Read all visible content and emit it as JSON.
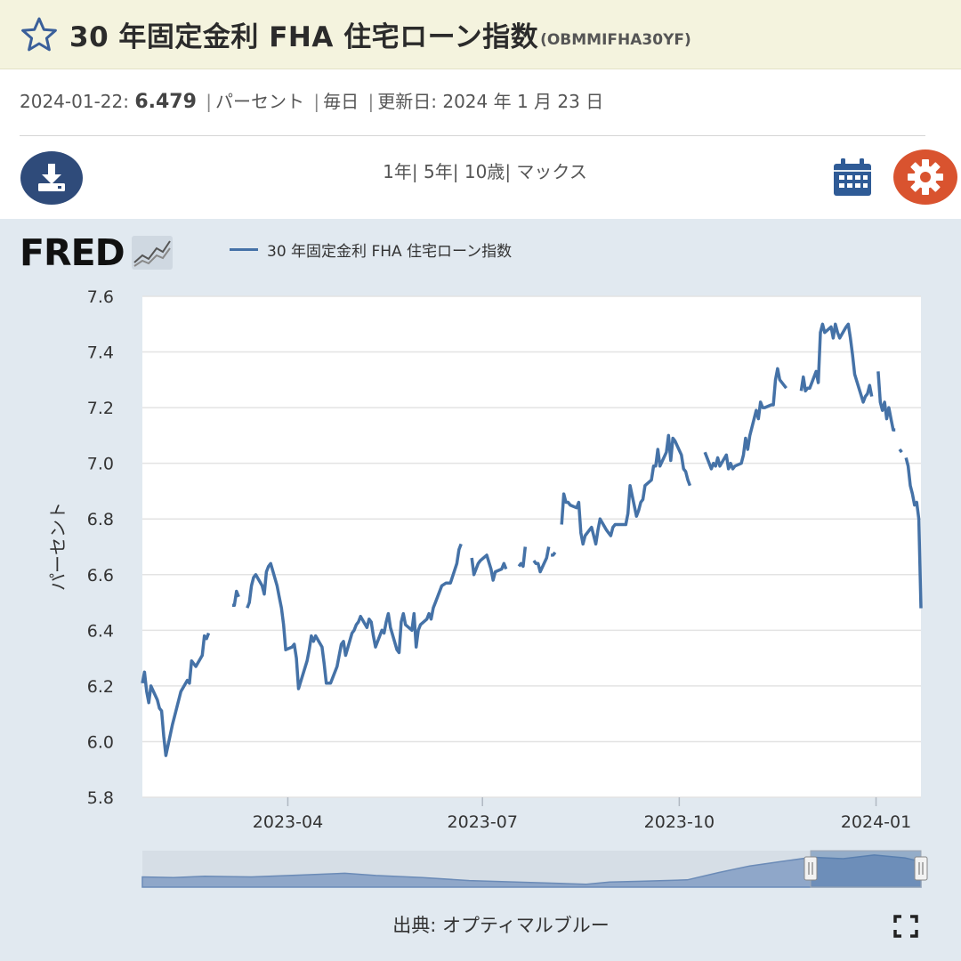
{
  "header": {
    "title": "30 年固定金利 FHA 住宅ローン指数",
    "code": "(OBMMIFHA30YF)",
    "star_icon": "star-outline-icon"
  },
  "meta": {
    "date": "2024-01-22:",
    "value": "6.479",
    "units": "パーセント",
    "frequency": "毎日",
    "updated_label": "更新日:",
    "updated_value": "2024 年 1 月 23 日"
  },
  "toolbar": {
    "ranges": [
      "1年",
      "5年",
      "10歳",
      "マックス"
    ],
    "download_icon": "download-icon",
    "calendar_icon": "calendar-icon",
    "settings_icon": "gear-icon"
  },
  "logo": {
    "text": "FRED"
  },
  "source": "出典: オプティマルブルー",
  "colors": {
    "series": "#4572a7",
    "gear": "#d9532f",
    "download": "#2f4b7a"
  },
  "chart_data": {
    "type": "line",
    "xlabel": "",
    "ylabel": "パーセント",
    "ylim": [
      5.8,
      7.6
    ],
    "yticks": [
      "5.8",
      "6.0",
      "6.2",
      "6.4",
      "6.6",
      "6.8",
      "7.0",
      "7.2",
      "7.4",
      "7.6"
    ],
    "xticks": [
      {
        "label": "2023-04",
        "date": "2023-04-01"
      },
      {
        "label": "2023-07",
        "date": "2023-07-01"
      },
      {
        "label": "2023-10",
        "date": "2023-10-01"
      },
      {
        "label": "2024-01",
        "date": "2024-01-01"
      }
    ],
    "xlim": [
      "2023-01-23",
      "2024-01-22"
    ],
    "grid": true,
    "legend": "top",
    "series": [
      {
        "name": "30 年固定金利 FHA 住宅ローン指数",
        "points": [
          [
            "2023-01-23",
            6.21
          ],
          [
            "2023-01-24",
            6.25
          ],
          [
            "2023-01-25",
            6.18
          ],
          [
            "2023-01-26",
            6.14
          ],
          [
            "2023-01-27",
            6.2
          ],
          [
            "2023-01-30",
            6.15
          ],
          [
            "2023-01-31",
            6.12
          ],
          [
            "2023-02-01",
            6.11
          ],
          [
            "2023-02-02",
            6.02
          ],
          [
            "2023-02-03",
            5.95
          ],
          [
            "2023-02-06",
            6.06
          ],
          [
            "2023-02-08",
            6.12
          ],
          [
            "2023-02-10",
            6.18
          ],
          [
            "2023-02-13",
            6.22
          ],
          [
            "2023-02-14",
            6.21
          ],
          [
            "2023-02-15",
            6.29
          ],
          [
            "2023-02-17",
            6.27
          ],
          [
            "2023-02-20",
            6.31
          ],
          [
            "2023-02-21",
            6.38
          ],
          [
            "2023-02-22",
            6.37
          ],
          [
            "2023-02-23",
            6.39
          ],
          [
            "2023-02-24",
            null
          ],
          [
            "2023-03-06",
            6.49
          ],
          [
            "2023-03-07",
            6.49
          ],
          [
            "2023-03-08",
            6.54
          ],
          [
            "2023-03-09",
            6.52
          ],
          [
            "2023-03-10",
            null
          ],
          [
            "2023-03-13",
            6.48
          ],
          [
            "2023-03-14",
            6.5
          ],
          [
            "2023-03-15",
            6.56
          ],
          [
            "2023-03-16",
            6.59
          ],
          [
            "2023-03-17",
            6.6
          ],
          [
            "2023-03-20",
            6.56
          ],
          [
            "2023-03-21",
            6.53
          ],
          [
            "2023-03-22",
            6.61
          ],
          [
            "2023-03-23",
            6.63
          ],
          [
            "2023-03-24",
            6.64
          ],
          [
            "2023-03-27",
            6.56
          ],
          [
            "2023-03-28",
            6.52
          ],
          [
            "2023-03-29",
            6.48
          ],
          [
            "2023-03-30",
            6.42
          ],
          [
            "2023-03-31",
            6.33
          ],
          [
            "2023-04-03",
            6.34
          ],
          [
            "2023-04-04",
            6.35
          ],
          [
            "2023-04-05",
            6.3
          ],
          [
            "2023-04-06",
            6.19
          ],
          [
            "2023-04-10",
            6.29
          ],
          [
            "2023-04-11",
            6.33
          ],
          [
            "2023-04-12",
            6.38
          ],
          [
            "2023-04-13",
            6.36
          ],
          [
            "2023-04-14",
            6.38
          ],
          [
            "2023-04-17",
            6.34
          ],
          [
            "2023-04-18",
            6.28
          ],
          [
            "2023-04-19",
            6.21
          ],
          [
            "2023-04-20",
            6.21
          ],
          [
            "2023-04-21",
            6.21
          ],
          [
            "2023-04-24",
            6.27
          ],
          [
            "2023-04-25",
            6.31
          ],
          [
            "2023-04-26",
            6.35
          ],
          [
            "2023-04-27",
            6.36
          ],
          [
            "2023-04-28",
            6.31
          ],
          [
            "2023-05-01",
            6.39
          ],
          [
            "2023-05-02",
            6.4
          ],
          [
            "2023-05-03",
            6.42
          ],
          [
            "2023-05-04",
            6.43
          ],
          [
            "2023-05-05",
            6.45
          ],
          [
            "2023-05-08",
            6.41
          ],
          [
            "2023-05-09",
            6.44
          ],
          [
            "2023-05-10",
            6.43
          ],
          [
            "2023-05-11",
            6.38
          ],
          [
            "2023-05-12",
            6.34
          ],
          [
            "2023-05-15",
            6.4
          ],
          [
            "2023-05-16",
            6.39
          ],
          [
            "2023-05-17",
            6.43
          ],
          [
            "2023-05-18",
            6.46
          ],
          [
            "2023-05-19",
            6.41
          ],
          [
            "2023-05-22",
            6.33
          ],
          [
            "2023-05-23",
            6.32
          ],
          [
            "2023-05-24",
            6.43
          ],
          [
            "2023-05-25",
            6.46
          ],
          [
            "2023-05-26",
            6.42
          ],
          [
            "2023-05-29",
            6.4
          ],
          [
            "2023-05-30",
            6.46
          ],
          [
            "2023-05-31",
            6.34
          ],
          [
            "2023-06-01",
            6.4
          ],
          [
            "2023-06-02",
            6.42
          ],
          [
            "2023-06-05",
            6.44
          ],
          [
            "2023-06-06",
            6.46
          ],
          [
            "2023-06-07",
            6.44
          ],
          [
            "2023-06-08",
            6.48
          ],
          [
            "2023-06-09",
            6.5
          ],
          [
            "2023-06-12",
            6.56
          ],
          [
            "2023-06-14",
            6.57
          ],
          [
            "2023-06-16",
            6.57
          ],
          [
            "2023-06-19",
            6.64
          ],
          [
            "2023-06-20",
            6.69
          ],
          [
            "2023-06-21",
            6.71
          ],
          [
            "2023-06-22",
            null
          ],
          [
            "2023-06-26",
            6.66
          ],
          [
            "2023-06-27",
            6.6
          ],
          [
            "2023-06-28",
            6.62
          ],
          [
            "2023-06-29",
            6.64
          ],
          [
            "2023-06-30",
            6.65
          ],
          [
            "2023-07-03",
            6.67
          ],
          [
            "2023-07-05",
            6.62
          ],
          [
            "2023-07-06",
            6.58
          ],
          [
            "2023-07-07",
            6.61
          ],
          [
            "2023-07-10",
            6.62
          ],
          [
            "2023-07-11",
            6.64
          ],
          [
            "2023-07-12",
            6.62
          ],
          [
            "2023-07-13",
            null
          ],
          [
            "2023-07-18",
            6.63
          ],
          [
            "2023-07-19",
            6.64
          ],
          [
            "2023-07-20",
            6.63
          ],
          [
            "2023-07-21",
            6.7
          ],
          [
            "2023-07-22",
            null
          ],
          [
            "2023-07-25",
            6.65
          ],
          [
            "2023-07-26",
            6.64
          ],
          [
            "2023-07-27",
            6.64
          ],
          [
            "2023-07-28",
            6.61
          ],
          [
            "2023-07-31",
            6.66
          ],
          [
            "2023-08-01",
            6.7
          ],
          [
            "2023-08-02",
            null
          ],
          [
            "2023-08-02",
            6.67
          ],
          [
            "2023-08-03",
            6.67
          ],
          [
            "2023-08-04",
            6.68
          ],
          [
            "2023-08-05",
            null
          ],
          [
            "2023-08-07",
            6.78
          ],
          [
            "2023-08-08",
            6.89
          ],
          [
            "2023-08-09",
            6.86
          ],
          [
            "2023-08-10",
            6.86
          ],
          [
            "2023-08-11",
            6.85
          ],
          [
            "2023-08-14",
            6.84
          ],
          [
            "2023-08-15",
            6.86
          ],
          [
            "2023-08-16",
            6.75
          ],
          [
            "2023-08-17",
            6.71
          ],
          [
            "2023-08-18",
            6.74
          ],
          [
            "2023-08-21",
            6.77
          ],
          [
            "2023-08-22",
            6.74
          ],
          [
            "2023-08-23",
            6.71
          ],
          [
            "2023-08-24",
            6.76
          ],
          [
            "2023-08-25",
            6.8
          ],
          [
            "2023-08-28",
            6.76
          ],
          [
            "2023-08-29",
            6.75
          ],
          [
            "2023-08-30",
            6.74
          ],
          [
            "2023-08-31",
            6.77
          ],
          [
            "2023-09-01",
            6.78
          ],
          [
            "2023-09-05",
            6.78
          ],
          [
            "2023-09-06",
            6.78
          ],
          [
            "2023-09-07",
            6.82
          ],
          [
            "2023-09-08",
            6.92
          ],
          [
            "2023-09-11",
            6.81
          ],
          [
            "2023-09-12",
            6.83
          ],
          [
            "2023-09-13",
            6.86
          ],
          [
            "2023-09-14",
            6.87
          ],
          [
            "2023-09-15",
            6.92
          ],
          [
            "2023-09-18",
            6.94
          ],
          [
            "2023-09-19",
            6.99
          ],
          [
            "2023-09-20",
            6.99
          ],
          [
            "2023-09-21",
            7.05
          ],
          [
            "2023-09-22",
            6.99
          ],
          [
            "2023-09-25",
            7.04
          ],
          [
            "2023-09-26",
            7.1
          ],
          [
            "2023-09-27",
            7.01
          ],
          [
            "2023-09-28",
            7.09
          ],
          [
            "2023-09-29",
            7.08
          ],
          [
            "2023-10-02",
            7.03
          ],
          [
            "2023-10-03",
            6.98
          ],
          [
            "2023-10-04",
            6.97
          ],
          [
            "2023-10-05",
            6.94
          ],
          [
            "2023-10-06",
            6.92
          ],
          [
            "2023-10-07",
            null
          ],
          [
            "2023-10-13",
            7.04
          ],
          [
            "2023-10-16",
            6.98
          ],
          [
            "2023-10-17",
            7.0
          ],
          [
            "2023-10-18",
            6.99
          ],
          [
            "2023-10-19",
            7.02
          ],
          [
            "2023-10-20",
            6.99
          ],
          [
            "2023-10-23",
            7.03
          ],
          [
            "2023-10-24",
            6.98
          ],
          [
            "2023-10-25",
            7.0
          ],
          [
            "2023-10-26",
            6.98
          ],
          [
            "2023-10-27",
            6.99
          ],
          [
            "2023-10-30",
            7.0
          ],
          [
            "2023-10-31",
            7.03
          ],
          [
            "2023-11-01",
            7.09
          ],
          [
            "2023-11-02",
            7.05
          ],
          [
            "2023-11-03",
            7.1
          ],
          [
            "2023-11-06",
            7.19
          ],
          [
            "2023-11-07",
            7.16
          ],
          [
            "2023-11-08",
            7.22
          ],
          [
            "2023-11-09",
            7.2
          ],
          [
            "2023-11-10",
            7.2
          ],
          [
            "2023-11-13",
            7.21
          ],
          [
            "2023-11-14",
            7.21
          ],
          [
            "2023-11-15",
            7.3
          ],
          [
            "2023-11-16",
            7.34
          ],
          [
            "2023-11-17",
            7.3
          ],
          [
            "2023-11-20",
            7.27
          ],
          [
            "2023-11-21",
            null
          ],
          [
            "2023-11-27",
            7.26
          ],
          [
            "2023-11-28",
            7.31
          ],
          [
            "2023-11-29",
            7.26
          ],
          [
            "2023-11-30",
            7.27
          ],
          [
            "2023-12-01",
            7.27
          ],
          [
            "2023-12-04",
            7.33
          ],
          [
            "2023-12-05",
            7.29
          ],
          [
            "2023-12-06",
            7.47
          ],
          [
            "2023-12-07",
            7.5
          ],
          [
            "2023-12-08",
            7.47
          ],
          [
            "2023-12-11",
            7.49
          ],
          [
            "2023-12-12",
            7.45
          ],
          [
            "2023-12-13",
            7.5
          ],
          [
            "2023-12-14",
            7.47
          ],
          [
            "2023-12-15",
            7.45
          ],
          [
            "2023-12-18",
            7.49
          ],
          [
            "2023-12-19",
            7.5
          ],
          [
            "2023-12-20",
            7.45
          ],
          [
            "2023-12-21",
            7.39
          ],
          [
            "2023-12-22",
            7.32
          ],
          [
            "2023-12-26",
            7.22
          ],
          [
            "2023-12-27",
            7.24
          ],
          [
            "2023-12-28",
            7.25
          ],
          [
            "2023-12-29",
            7.28
          ],
          [
            "2023-12-30",
            7.24
          ],
          [
            "2023-12-31",
            null
          ],
          [
            "2024-01-02",
            7.33
          ],
          [
            "2024-01-03",
            7.22
          ],
          [
            "2024-01-04",
            7.19
          ],
          [
            "2024-01-05",
            7.22
          ],
          [
            "2024-01-06",
            7.16
          ],
          [
            "2024-01-07",
            7.2
          ],
          [
            "2024-01-08",
            7.16
          ],
          [
            "2024-01-09",
            7.12
          ],
          [
            "2024-01-10",
            7.12
          ],
          [
            "2024-01-11",
            null
          ],
          [
            "2024-01-12",
            7.05
          ],
          [
            "2024-01-13",
            7.04
          ],
          [
            "2024-01-14",
            null
          ],
          [
            "2024-01-15",
            7.02
          ],
          [
            "2024-01-16",
            6.99
          ],
          [
            "2024-01-17",
            6.92
          ],
          [
            "2024-01-18",
            6.89
          ],
          [
            "2024-01-19",
            6.85
          ],
          [
            "2024-01-20",
            6.86
          ],
          [
            "2024-01-21",
            6.8
          ],
          [
            "2024-01-22",
            6.479
          ]
        ]
      }
    ]
  }
}
